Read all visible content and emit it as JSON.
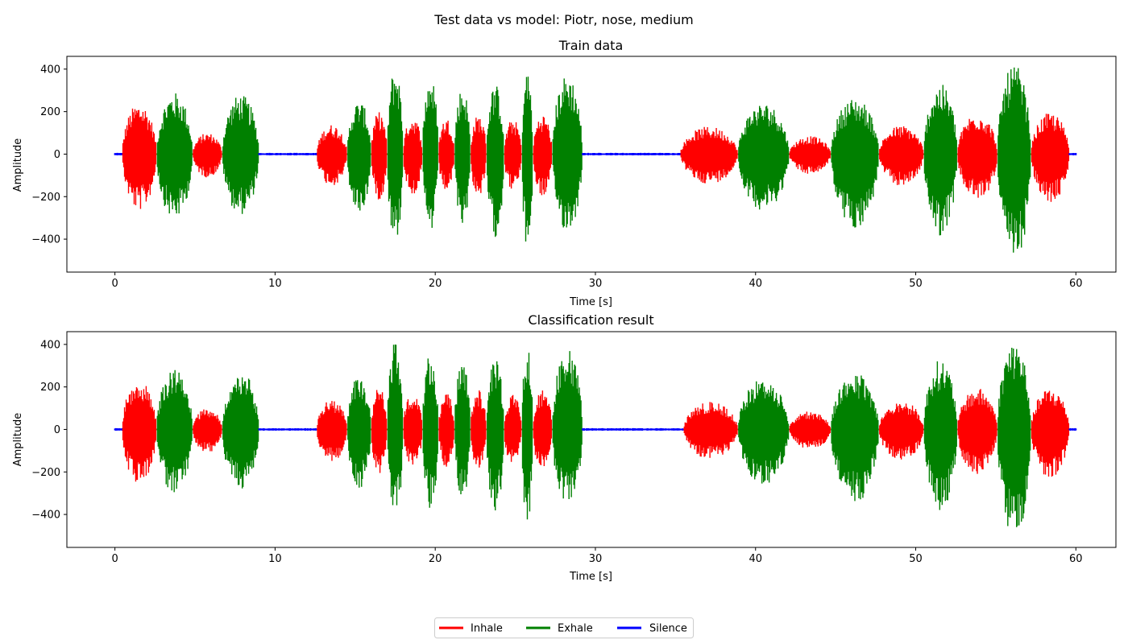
{
  "figure": {
    "suptitle": "Test data vs model: Piotr, nose, medium"
  },
  "colors": {
    "Inhale": "#ff0000",
    "Exhale": "#008000",
    "Silence": "#0000ff"
  },
  "legend": {
    "placement": "bottom-center",
    "entries": [
      "Inhale",
      "Exhale",
      "Silence"
    ]
  },
  "chart_data": [
    {
      "type": "line",
      "title": "Train data",
      "xlabel": "Time [s]",
      "ylabel": "Amplitude",
      "xlim": [
        -3,
        62.5
      ],
      "ylim": [
        -555,
        460
      ],
      "xticks": [
        0,
        10,
        20,
        30,
        40,
        50,
        60
      ],
      "yticks": [
        -400,
        -200,
        0,
        200,
        400
      ],
      "grid": false,
      "segments": [
        {
          "label": "Silence",
          "start": 0.0,
          "end": 0.45,
          "amp": 6
        },
        {
          "label": "Inhale",
          "start": 0.45,
          "end": 2.6,
          "amp": 240,
          "min": -265
        },
        {
          "label": "Exhale",
          "start": 2.6,
          "end": 4.85,
          "amp": 290,
          "min": -305
        },
        {
          "label": "Inhale",
          "start": 4.85,
          "end": 6.7,
          "amp": 100,
          "min": -110
        },
        {
          "label": "Exhale",
          "start": 6.7,
          "end": 9.0,
          "amp": 280,
          "min": -285
        },
        {
          "label": "Silence",
          "start": 9.0,
          "end": 12.6,
          "amp": 6
        },
        {
          "label": "Inhale",
          "start": 12.6,
          "end": 14.5,
          "amp": 140,
          "min": -150
        },
        {
          "label": "Exhale",
          "start": 14.5,
          "end": 16.0,
          "amp": 250,
          "min": -280
        },
        {
          "label": "Inhale",
          "start": 16.0,
          "end": 17.0,
          "amp": 200,
          "min": -215
        },
        {
          "label": "Exhale",
          "start": 17.0,
          "end": 18.0,
          "amp": 410,
          "min": -415
        },
        {
          "label": "Inhale",
          "start": 18.0,
          "end": 19.2,
          "amp": 175,
          "min": -190
        },
        {
          "label": "Exhale",
          "start": 19.2,
          "end": 20.2,
          "amp": 365,
          "min": -375
        },
        {
          "label": "Inhale",
          "start": 20.2,
          "end": 21.2,
          "amp": 170,
          "min": -180
        },
        {
          "label": "Exhale",
          "start": 21.2,
          "end": 22.2,
          "amp": 315,
          "min": -330
        },
        {
          "label": "Inhale",
          "start": 22.2,
          "end": 23.2,
          "amp": 185,
          "min": -200
        },
        {
          "label": "Exhale",
          "start": 23.2,
          "end": 24.3,
          "amp": 330,
          "min": -390
        },
        {
          "label": "Inhale",
          "start": 24.3,
          "end": 25.4,
          "amp": 165,
          "min": -170
        },
        {
          "label": "Exhale",
          "start": 25.4,
          "end": 26.1,
          "amp": 395,
          "min": -450
        },
        {
          "label": "Inhale",
          "start": 26.1,
          "end": 27.3,
          "amp": 190,
          "min": -200
        },
        {
          "label": "Exhale",
          "start": 27.3,
          "end": 29.2,
          "amp": 375,
          "min": -365
        },
        {
          "label": "Silence",
          "start": 29.2,
          "end": 35.3,
          "amp": 6
        },
        {
          "label": "Inhale",
          "start": 35.3,
          "end": 38.9,
          "amp": 130,
          "min": -140
        },
        {
          "label": "Exhale",
          "start": 38.9,
          "end": 42.1,
          "amp": 240,
          "min": -265
        },
        {
          "label": "Inhale",
          "start": 42.1,
          "end": 44.7,
          "amp": 85,
          "min": -95
        },
        {
          "label": "Exhale",
          "start": 44.7,
          "end": 47.7,
          "amp": 265,
          "min": -350
        },
        {
          "label": "Inhale",
          "start": 47.7,
          "end": 50.5,
          "amp": 135,
          "min": -150
        },
        {
          "label": "Exhale",
          "start": 50.5,
          "end": 52.6,
          "amp": 330,
          "min": -385
        },
        {
          "label": "Inhale",
          "start": 52.6,
          "end": 55.1,
          "amp": 195,
          "min": -215
        },
        {
          "label": "Exhale",
          "start": 55.1,
          "end": 57.2,
          "amp": 420,
          "min": -510
        },
        {
          "label": "Inhale",
          "start": 57.2,
          "end": 59.6,
          "amp": 195,
          "min": -230
        },
        {
          "label": "Silence",
          "start": 59.6,
          "end": 60.0,
          "amp": 6
        }
      ]
    },
    {
      "type": "line",
      "title": "Classification result",
      "xlabel": "Time [s]",
      "ylabel": "Amplitude",
      "xlim": [
        -3,
        62.5
      ],
      "ylim": [
        -555,
        460
      ],
      "xticks": [
        0,
        10,
        20,
        30,
        40,
        50,
        60
      ],
      "yticks": [
        -400,
        -200,
        0,
        200,
        400
      ],
      "grid": false,
      "segments": [
        {
          "label": "Silence",
          "start": 0.0,
          "end": 0.45,
          "amp": 6
        },
        {
          "label": "Inhale",
          "start": 0.45,
          "end": 2.6,
          "amp": 240,
          "min": -265
        },
        {
          "label": "Exhale",
          "start": 2.6,
          "end": 4.85,
          "amp": 290,
          "min": -305
        },
        {
          "label": "Inhale",
          "start": 4.85,
          "end": 6.7,
          "amp": 100,
          "min": -110
        },
        {
          "label": "Exhale",
          "start": 6.7,
          "end": 9.0,
          "amp": 280,
          "min": -285
        },
        {
          "label": "Silence",
          "start": 9.0,
          "end": 12.6,
          "amp": 6
        },
        {
          "label": "Inhale",
          "start": 12.6,
          "end": 14.5,
          "amp": 140,
          "min": -150
        },
        {
          "label": "Exhale",
          "start": 14.5,
          "end": 16.0,
          "amp": 250,
          "min": -280
        },
        {
          "label": "Inhale",
          "start": 16.0,
          "end": 17.0,
          "amp": 200,
          "min": -215
        },
        {
          "label": "Exhale",
          "start": 17.0,
          "end": 18.0,
          "amp": 410,
          "min": -415
        },
        {
          "label": "Inhale",
          "start": 18.0,
          "end": 19.2,
          "amp": 175,
          "min": -190
        },
        {
          "label": "Exhale",
          "start": 19.2,
          "end": 20.2,
          "amp": 365,
          "min": -375
        },
        {
          "label": "Inhale",
          "start": 20.2,
          "end": 21.2,
          "amp": 170,
          "min": -180
        },
        {
          "label": "Exhale",
          "start": 21.2,
          "end": 22.2,
          "amp": 315,
          "min": -330
        },
        {
          "label": "Inhale",
          "start": 22.2,
          "end": 23.2,
          "amp": 185,
          "min": -200
        },
        {
          "label": "Exhale",
          "start": 23.2,
          "end": 24.3,
          "amp": 330,
          "min": -390
        },
        {
          "label": "Inhale",
          "start": 24.3,
          "end": 25.4,
          "amp": 165,
          "min": -170
        },
        {
          "label": "Exhale",
          "start": 25.4,
          "end": 26.1,
          "amp": 395,
          "min": -450
        },
        {
          "label": "Inhale",
          "start": 26.1,
          "end": 27.3,
          "amp": 190,
          "min": -200
        },
        {
          "label": "Exhale",
          "start": 27.3,
          "end": 29.2,
          "amp": 375,
          "min": -365
        },
        {
          "label": "Silence",
          "start": 29.2,
          "end": 35.5,
          "amp": 6
        },
        {
          "label": "Inhale",
          "start": 35.5,
          "end": 38.9,
          "amp": 130,
          "min": -140
        },
        {
          "label": "Exhale",
          "start": 38.9,
          "end": 42.1,
          "amp": 240,
          "min": -265
        },
        {
          "label": "Inhale",
          "start": 42.1,
          "end": 44.7,
          "amp": 85,
          "min": -95
        },
        {
          "label": "Exhale",
          "start": 44.7,
          "end": 47.7,
          "amp": 265,
          "min": -350
        },
        {
          "label": "Inhale",
          "start": 47.7,
          "end": 50.5,
          "amp": 135,
          "min": -150
        },
        {
          "label": "Exhale",
          "start": 50.5,
          "end": 52.6,
          "amp": 330,
          "min": -385
        },
        {
          "label": "Inhale",
          "start": 52.6,
          "end": 55.1,
          "amp": 195,
          "min": -215
        },
        {
          "label": "Exhale",
          "start": 55.1,
          "end": 57.2,
          "amp": 420,
          "min": -510
        },
        {
          "label": "Inhale",
          "start": 57.2,
          "end": 59.6,
          "amp": 195,
          "min": -230
        },
        {
          "label": "Silence",
          "start": 59.6,
          "end": 60.0,
          "amp": 6
        }
      ]
    }
  ]
}
